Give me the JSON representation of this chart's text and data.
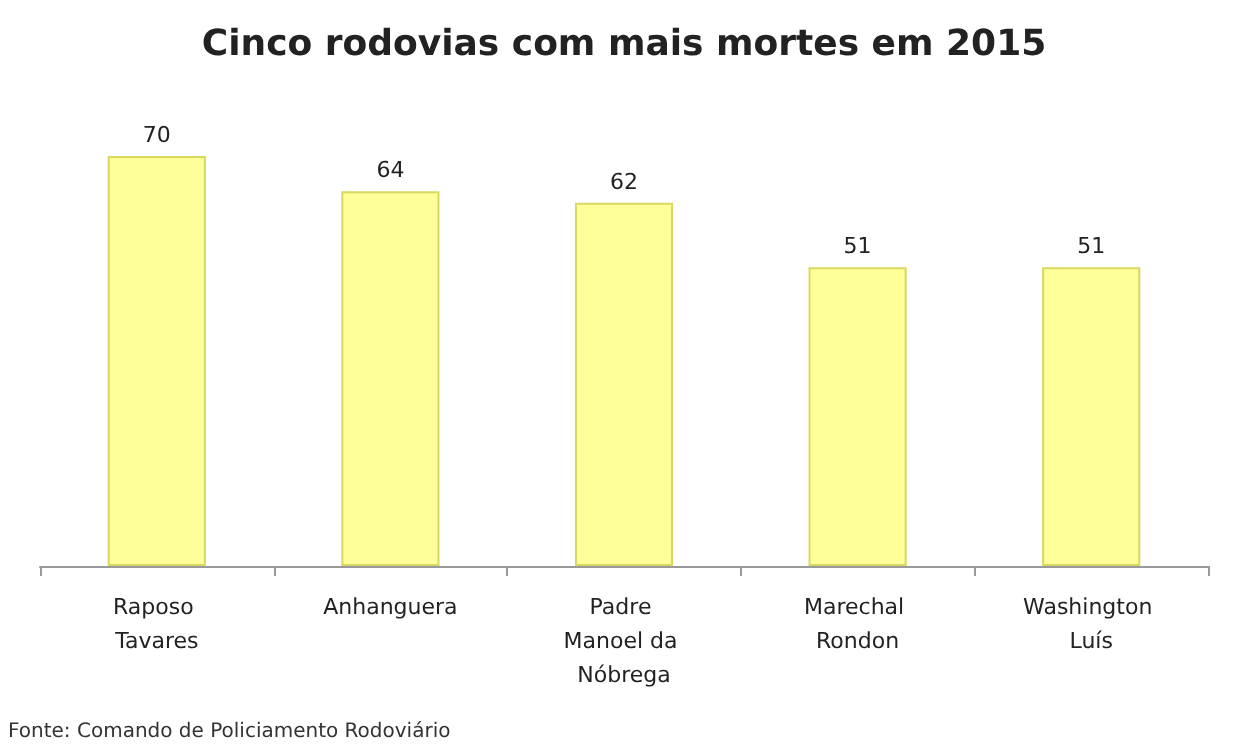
{
  "chart_data": {
    "type": "bar",
    "title": "Cinco rodovias com mais mortes em 2015",
    "categories": [
      "Raposo Tavares",
      "Anhanguera",
      "Padre Manoel da Nóbrega",
      "Marechal Rondon",
      "Washington Luís"
    ],
    "values": [
      70,
      64,
      62,
      51,
      51
    ],
    "color": "#ffff99",
    "data_labels": true,
    "annotations": [
      "Fonte: Comando de Policiamento Rodoviário"
    ]
  }
}
